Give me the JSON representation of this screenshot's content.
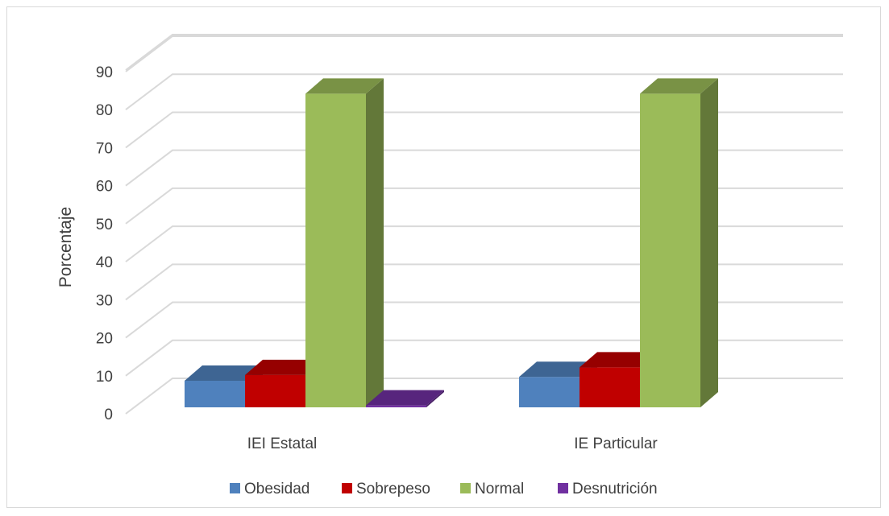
{
  "chart_data": {
    "type": "bar",
    "title": "",
    "xlabel": "",
    "ylabel": "Porcentaje",
    "ylim": [
      0,
      90
    ],
    "yticks": [
      0,
      10,
      20,
      30,
      40,
      50,
      60,
      70,
      80,
      90
    ],
    "categories": [
      "IEI Estatal",
      "IE Particular"
    ],
    "series": [
      {
        "name": "Obesidad",
        "values": [
          7,
          8
        ],
        "color": "#4f81bd"
      },
      {
        "name": "Sobrepeso",
        "values": [
          8.5,
          10.5
        ],
        "color": "#c00000"
      },
      {
        "name": "Normal",
        "values": [
          82.5,
          82.5
        ],
        "color": "#9bbb59"
      },
      {
        "name": "Desnutrición",
        "values": [
          0.5,
          0
        ],
        "color": "#7030a0"
      }
    ],
    "grid": true,
    "legend_position": "bottom",
    "style": "3d-clustered-column"
  }
}
